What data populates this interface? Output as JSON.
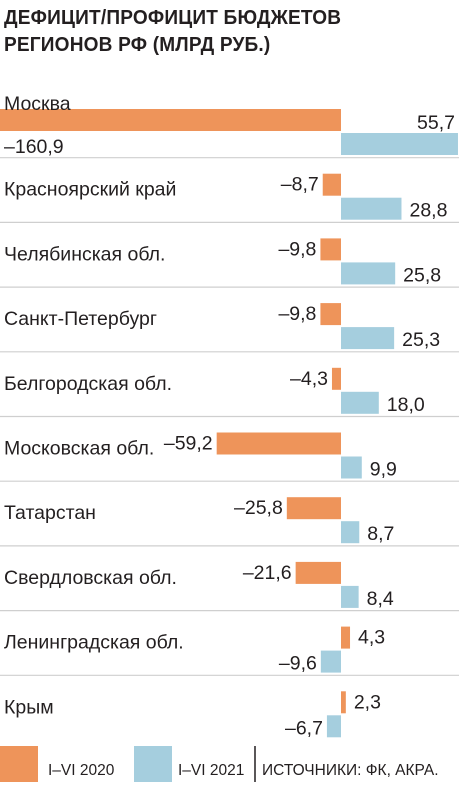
{
  "colors": {
    "series_2020": "#ee945a",
    "series_2021": "#a5cede",
    "divider": "#cfcfcf",
    "text": "#231f20"
  },
  "chart_data": {
    "type": "bar",
    "orientation": "horizontal",
    "title_lines": [
      "ДЕФИЦИТ/ПРОФИЦИТ БЮДЖЕТОВ",
      "РЕГИОНОВ РФ (МЛРД РУБ.)"
    ],
    "categories": [
      "Москва",
      "Красноярский край",
      "Челябинская обл.",
      "Санкт-Петербург",
      "Белгородская обл.",
      "Московская обл.",
      "Татарстан",
      "Свердловская обл.",
      "Ленинградская обл.",
      "Крым"
    ],
    "series": [
      {
        "name": "I–VI 2020",
        "values": [
          -160.9,
          -8.7,
          -9.8,
          -9.8,
          -4.3,
          -59.2,
          -25.8,
          -21.6,
          4.3,
          2.3
        ],
        "labels": [
          "–160,9",
          "–8,7",
          "–9,8",
          "–9,8",
          "–4,3",
          "–59,2",
          "–25,8",
          "–21,6",
          "4,3",
          "2,3"
        ]
      },
      {
        "name": "I–VI 2021",
        "values": [
          55.7,
          28.8,
          25.8,
          25.3,
          18.0,
          9.9,
          8.7,
          8.4,
          -9.6,
          -6.7
        ],
        "labels": [
          "55,7",
          "28,8",
          "25,8",
          "25,3",
          "18,0",
          "9,9",
          "8,7",
          "8,4",
          "–9,6",
          "–6,7"
        ]
      }
    ],
    "legend_placement": "bottom",
    "grid": false
  },
  "source_note": "ИСТОЧНИКИ: ФК, АКРА."
}
